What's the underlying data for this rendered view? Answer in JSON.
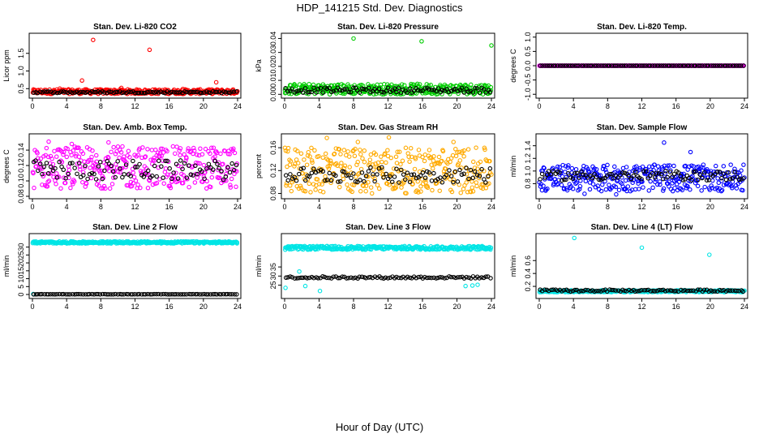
{
  "page": {
    "title": "HDP_141215  Std. Dev. Diagnostics",
    "xlabel": "Hour of Day (UTC)"
  },
  "chart_data": [
    {
      "type": "scatter",
      "title": "Stan. Dev. Li-820 CO2",
      "ylabel": "Licor ppm",
      "xlim": [
        0,
        24
      ],
      "ylim": [
        0.3,
        2.0
      ],
      "xticks": [
        "0",
        "4",
        "8",
        "12",
        "16",
        "20",
        "24"
      ],
      "yticks": [
        "0.5",
        "1.0",
        "1.5"
      ],
      "series": [
        {
          "color": "#ff0000",
          "band": [
            0.35,
            0.48
          ],
          "outliers": [
            [
              7.1,
              1.88
            ],
            [
              13.7,
              1.6
            ],
            [
              5.8,
              0.73
            ],
            [
              21.5,
              0.68
            ],
            [
              3.2,
              0.5
            ],
            [
              10.4,
              0.52
            ],
            [
              17.6,
              0.49
            ]
          ]
        },
        {
          "color": "#000000",
          "band": [
            0.36,
            0.44
          ],
          "outliers": []
        }
      ]
    },
    {
      "type": "scatter",
      "title": "Stan. Dev. Li-820 Pressure",
      "ylabel": "kPa",
      "xlim": [
        0,
        24
      ],
      "ylim": [
        -0.001,
        0.042
      ],
      "xticks": [
        "0",
        "4",
        "8",
        "12",
        "16",
        "20",
        "24"
      ],
      "yticks": [
        "0.00",
        "0.01",
        "0.02",
        "0.03",
        "0.04"
      ],
      "series": [
        {
          "color": "#00cc00",
          "band": [
            0.0,
            0.0075
          ],
          "outliers": [
            [
              8.0,
              0.04
            ],
            [
              15.9,
              0.038
            ],
            [
              24.0,
              0.035
            ]
          ]
        },
        {
          "color": "#000000",
          "band": [
            0.0,
            0.006
          ],
          "outliers": []
        }
      ]
    },
    {
      "type": "scatter",
      "title": "Stan. Dev. Li-820 Temp.",
      "ylabel": "degrees C",
      "xlim": [
        0,
        24
      ],
      "ylim": [
        -1.05,
        1.05
      ],
      "xticks": [
        "0",
        "4",
        "8",
        "12",
        "16",
        "20",
        "24"
      ],
      "yticks": [
        "-1.0",
        "-0.5",
        "0.0",
        "0.5",
        "1.0"
      ],
      "series": [
        {
          "color": "#ff00ff",
          "band": [
            0.0,
            0.0
          ],
          "outliers": []
        },
        {
          "color": "#000000",
          "band": [
            0.0,
            0.0
          ],
          "outliers": []
        }
      ]
    },
    {
      "type": "scatter",
      "title": "Stan. Dev. Amb. Box Temp.",
      "ylabel": "degrees C",
      "xlim": [
        0,
        24
      ],
      "ylim": [
        0.08,
        0.158
      ],
      "xticks": [
        "0",
        "4",
        "8",
        "12",
        "16",
        "20",
        "24"
      ],
      "yticks": [
        "0.08",
        "0.10",
        "0.12",
        "0.14"
      ],
      "series": [
        {
          "color": "#ff00ff",
          "band": [
            0.09,
            0.145
          ],
          "outliers": [
            [
              4.6,
              0.148
            ],
            [
              8.9,
              0.15
            ],
            [
              1.9,
              0.151
            ]
          ]
        },
        {
          "color": "#000000",
          "band": [
            0.093,
            0.135
          ],
          "outliers": []
        }
      ]
    },
    {
      "type": "scatter",
      "title": "Stan. Dev. Gas Stream RH",
      "ylabel": "percent",
      "xlim": [
        0,
        24
      ],
      "ylim": [
        0.075,
        0.18
      ],
      "xticks": [
        "0",
        "4",
        "8",
        "12",
        "16",
        "20",
        "24"
      ],
      "yticks": [
        "0.08",
        "0.12",
        "0.16"
      ],
      "series": [
        {
          "color": "#ffaa00",
          "band": [
            0.08,
            0.16
          ],
          "outliers": [
            [
              4.9,
              0.177
            ],
            [
              12.1,
              0.178
            ],
            [
              19.6,
              0.17
            ],
            [
              8.5,
              0.17
            ]
          ]
        },
        {
          "color": "#000000",
          "band": [
            0.09,
            0.135
          ],
          "outliers": []
        }
      ]
    },
    {
      "type": "scatter",
      "title": "Stan. Dev. Sample Flow",
      "ylabel": "ml/min",
      "xlim": [
        0,
        24
      ],
      "ylim": [
        0.6,
        1.55
      ],
      "xticks": [
        "0",
        "4",
        "8",
        "12",
        "16",
        "20",
        "24"
      ],
      "yticks": [
        "0.8",
        "1.0",
        "1.2",
        "1.4"
      ],
      "series": [
        {
          "color": "#0000ff",
          "band": [
            0.68,
            1.1
          ],
          "outliers": [
            [
              14.6,
              1.45
            ],
            [
              17.7,
              1.3
            ],
            [
              9.0,
              0.63
            ],
            [
              5.3,
              0.64
            ]
          ]
        },
        {
          "color": "#000000",
          "band": [
            0.8,
            1.05
          ],
          "outliers": []
        }
      ]
    },
    {
      "type": "scatter",
      "title": "Stan. Dev. Line 2 Flow",
      "ylabel": "ml/min",
      "xlim": [
        0,
        24
      ],
      "ylim": [
        -1,
        37
      ],
      "xticks": [
        "0",
        "4",
        "8",
        "12",
        "16",
        "20",
        "24"
      ],
      "yticks": [
        "0",
        "5",
        "10",
        "15",
        "20",
        "25",
        "30"
      ],
      "series": [
        {
          "color": "#00e5e5",
          "band": [
            32.3,
            33.6
          ],
          "outliers": [
            [
              0.1,
              0.3
            ]
          ]
        },
        {
          "color": "#000000",
          "band": [
            0.0,
            0.3
          ],
          "outliers": []
        }
      ]
    },
    {
      "type": "scatter",
      "title": "Stan. Dev. Line 3 Flow",
      "ylabel": "ml/min",
      "xlim": [
        0,
        24
      ],
      "ylim": [
        19,
        52
      ],
      "xticks": [
        "0",
        "4",
        "8",
        "12",
        "16",
        "20",
        "24"
      ],
      "yticks": [
        "25",
        "30",
        "35"
      ],
      "series": [
        {
          "color": "#00e5e5",
          "band": [
            44.5,
            46.5
          ],
          "outliers": [
            [
              1.7,
              32.5
            ],
            [
              2.4,
              24.5
            ],
            [
              4.1,
              21.8
            ],
            [
              21.0,
              24.5
            ],
            [
              21.8,
              24.8
            ],
            [
              22.4,
              25.2
            ],
            [
              0.1,
              23.5
            ]
          ]
        },
        {
          "color": "#000000",
          "band": [
            28.3,
            30.2
          ],
          "outliers": []
        }
      ]
    },
    {
      "type": "scatter",
      "title": "Stan. Dev. Line 4 (LT) Flow",
      "ylabel": "ml/min",
      "xlim": [
        0,
        24
      ],
      "ylim": [
        0.05,
        0.98
      ],
      "xticks": [
        "0",
        "4",
        "8",
        "12",
        "16",
        "20",
        "24"
      ],
      "yticks": [
        "0.2",
        "0.4",
        "0.6"
      ],
      "series": [
        {
          "color": "#00e5e5",
          "band": [
            0.11,
            0.14
          ],
          "outliers": [
            [
              4.1,
              0.95
            ],
            [
              12.0,
              0.8
            ],
            [
              19.9,
              0.69
            ]
          ]
        },
        {
          "color": "#000000",
          "band": [
            0.11,
            0.16
          ],
          "outliers": []
        }
      ]
    }
  ]
}
